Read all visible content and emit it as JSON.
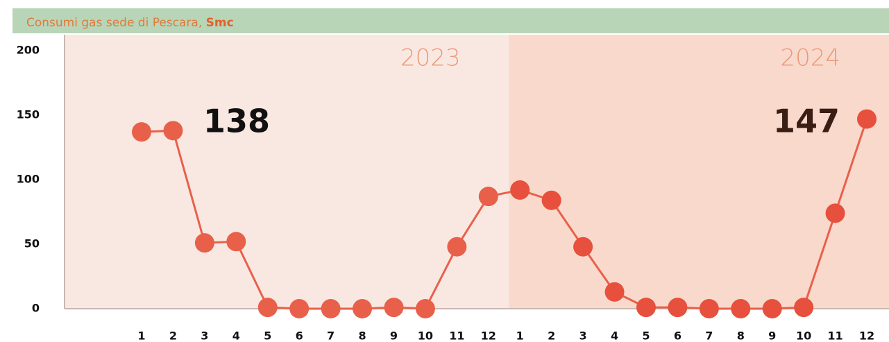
{
  "chart_data": {
    "type": "line",
    "title": "Consumi gas sede di Pescara, ",
    "unit": "Smc",
    "regions": [
      "2023",
      "2024"
    ],
    "categories": [
      "1",
      "2",
      "3",
      "4",
      "5",
      "6",
      "7",
      "8",
      "9",
      "10",
      "11",
      "12",
      "1",
      "2",
      "3",
      "4",
      "5",
      "6",
      "7",
      "8",
      "9",
      "10",
      "11",
      "12"
    ],
    "values": [
      137,
      138,
      51,
      52,
      1,
      0,
      0,
      0,
      1,
      0,
      48,
      87,
      92,
      84,
      48,
      13,
      1,
      1,
      0,
      0,
      0,
      1,
      74,
      147
    ],
    "color": "#e8604a",
    "ylim": [
      0,
      200
    ],
    "yticks": [
      0,
      50,
      100,
      150,
      200
    ]
  }
}
